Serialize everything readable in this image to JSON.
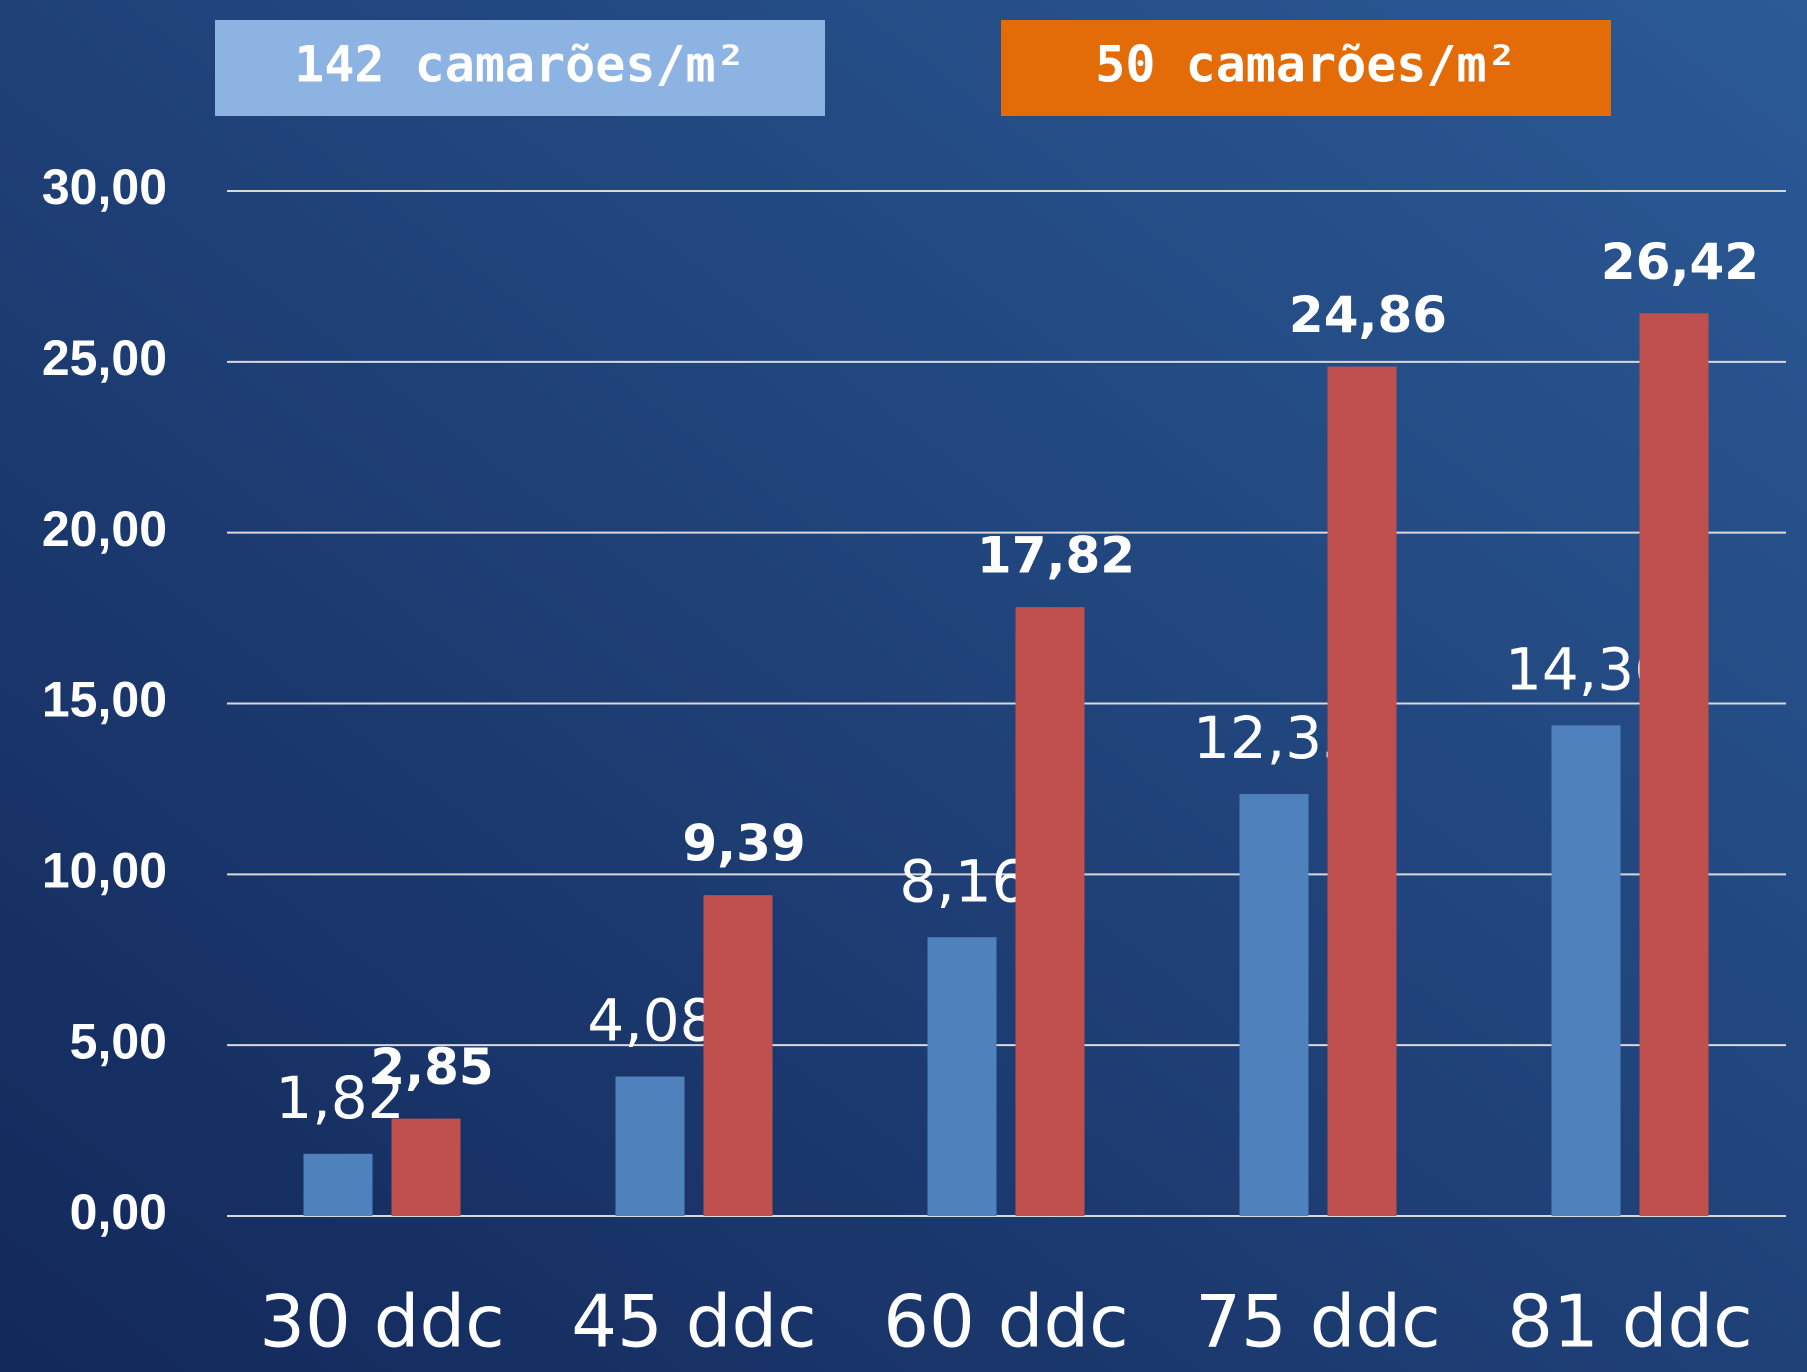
{
  "chart_data": {
    "type": "bar",
    "categories": [
      "30 ddc",
      "45 ddc",
      "60 ddc",
      "75 ddc",
      "81 ddc"
    ],
    "series": [
      {
        "name": "142 camarões/m²",
        "color": "#4f81bd",
        "legend_color": "#8db3e2",
        "values": [
          1.82,
          4.08,
          8.16,
          12.35,
          14.36
        ],
        "value_labels": [
          "1,82",
          "4,08",
          "8,16",
          "12,35",
          "14,36"
        ]
      },
      {
        "name": "50 camarões/m²",
        "color": "#c0504d",
        "legend_color": "#e36c09",
        "values": [
          2.85,
          9.39,
          17.82,
          24.86,
          26.42
        ],
        "value_labels": [
          "2,85",
          "9,39",
          "17,82",
          "24,86",
          "26,42"
        ]
      }
    ],
    "ylim": [
      0,
      30
    ],
    "yticks": [
      {
        "value": 0,
        "label": "0,00"
      },
      {
        "value": 5,
        "label": "5,00"
      },
      {
        "value": 10,
        "label": "10,00"
      },
      {
        "value": 15,
        "label": "15,00"
      },
      {
        "value": 20,
        "label": "20,00"
      },
      {
        "value": 25,
        "label": "25,00"
      },
      {
        "value": 30,
        "label": "30,00"
      }
    ],
    "grid": true
  }
}
